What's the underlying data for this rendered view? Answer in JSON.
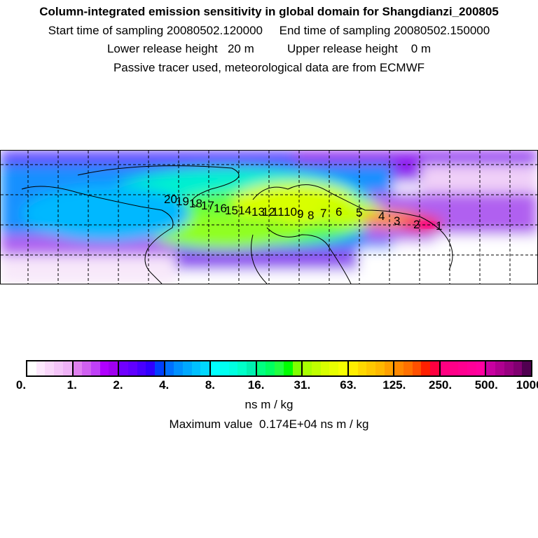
{
  "header": {
    "title": "Column-integrated emission sensitivity in global domain for Shangdianzi_200805",
    "start_label": "Start time of sampling 20080502.120000",
    "end_label": "End time of sampling 20080502.150000",
    "lower_label": "Lower release height   20 m",
    "upper_label": "Upper release height    0 m",
    "note": "Passive tracer used, meteorological data are from ECMWF"
  },
  "map": {
    "trajectory_labels": [
      "1",
      "2",
      "3",
      "4",
      "5",
      "6",
      "7",
      "8",
      "9",
      "10",
      "11",
      "12",
      "13",
      "14",
      "15",
      "16",
      "17",
      "18",
      "19",
      "20"
    ]
  },
  "colorbar": {
    "ticks": [
      "0.",
      "1.",
      "2.",
      "4.",
      "8.",
      "16.",
      "31.",
      "63.",
      "125.",
      "250.",
      "500.",
      "1000."
    ],
    "colors": [
      [
        "#ffffff",
        "#fde8fd",
        "#f9d6fa",
        "#f4c4f8",
        "#efb2f6"
      ],
      [
        "#e080f0",
        "#d060f0",
        "#c040f8",
        "#b000ff",
        "#a000f0"
      ],
      [
        "#7000ff",
        "#6000ff",
        "#4800ff",
        "#3000ff",
        "#0040ff"
      ],
      [
        "#0070ff",
        "#0090ff",
        "#00a8ff",
        "#00c0ff",
        "#00d8ff"
      ],
      [
        "#00ffff",
        "#00fff0",
        "#00ffe0",
        "#00ffc8",
        "#00f0b0"
      ],
      [
        "#00ff80",
        "#00ff60",
        "#20ff40",
        "#00ff00",
        "#80ff00"
      ],
      [
        "#a8ff00",
        "#c0ff00",
        "#d8ff00",
        "#e8ff00",
        "#f8ff00"
      ],
      [
        "#ffee00",
        "#ffd800",
        "#ffc800",
        "#ffb800",
        "#ffa000"
      ],
      [
        "#ff8800",
        "#ff7000",
        "#ff5000",
        "#ff2000",
        "#ff0040"
      ],
      [
        "#ff0080",
        "#ff0088",
        "#ff0090",
        "#ff0098",
        "#ff00a0"
      ],
      [
        "#c800a0",
        "#b00090",
        "#980080",
        "#800070",
        "#500050"
      ]
    ],
    "unit": "ns m / kg",
    "max_label": "Maximum value  0.174E+04 ns m / kg"
  }
}
